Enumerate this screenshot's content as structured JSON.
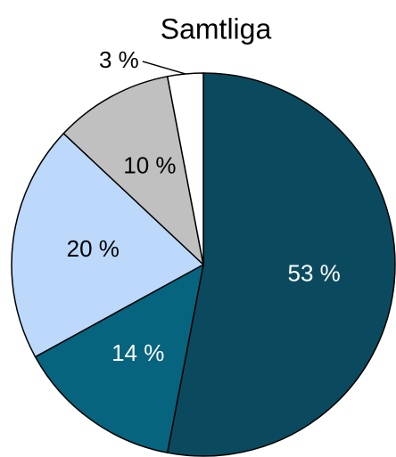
{
  "chart_data": {
    "type": "pie",
    "title": "Samtliga",
    "categories": [
      null,
      null,
      null,
      null,
      null
    ],
    "values": [
      53,
      14,
      20,
      10,
      3
    ],
    "value_labels": [
      "53 %",
      "14 %",
      "20 %",
      "10 %",
      "3 %"
    ],
    "colors": [
      "#0b4a5e",
      "#06647f",
      "#bcd9fc",
      "#c0c0c0",
      "#ffffff"
    ]
  }
}
